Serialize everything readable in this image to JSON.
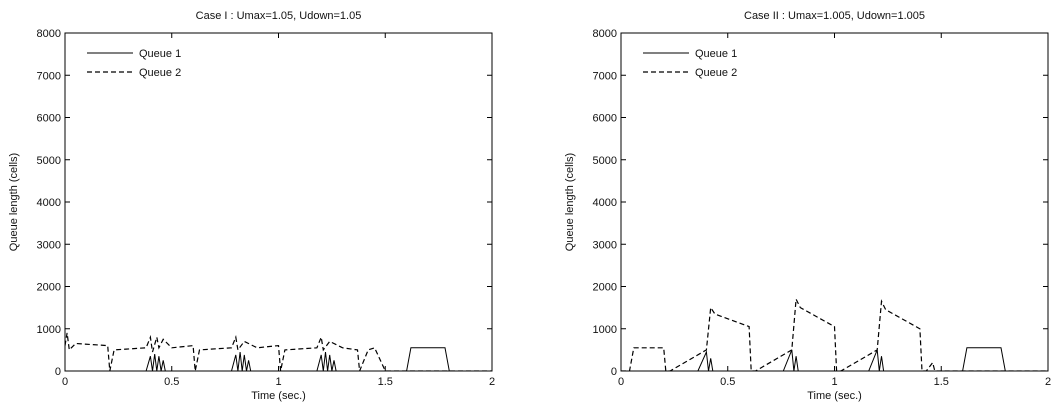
{
  "chart_data": [
    {
      "type": "line",
      "title": "Case I : Umax=1.05, Udown=1.05",
      "xlabel": "Time (sec.)",
      "ylabel": "Queue length (cells)",
      "xlim": [
        0,
        2
      ],
      "ylim": [
        0,
        8000
      ],
      "xticks": [
        "0",
        "0.5",
        "1",
        "1.5",
        "2"
      ],
      "yticks": [
        "0",
        "1000",
        "2000",
        "3000",
        "4000",
        "5000",
        "6000",
        "7000",
        "8000"
      ],
      "grid": false,
      "legend_position": "top-left",
      "series": [
        {
          "name": "Queue 1",
          "style": "solid",
          "x": [
            0,
            0.38,
            0.4,
            0.41,
            0.42,
            0.43,
            0.44,
            0.45,
            0.46,
            0.47,
            0.78,
            0.8,
            0.81,
            0.82,
            0.83,
            0.84,
            0.85,
            0.86,
            0.87,
            1.18,
            1.2,
            1.21,
            1.22,
            1.23,
            1.24,
            1.25,
            1.26,
            1.27,
            1.6,
            1.62,
            1.78,
            1.8,
            2
          ],
          "y": [
            0,
            0,
            350,
            0,
            400,
            0,
            350,
            0,
            250,
            0,
            0,
            380,
            0,
            450,
            0,
            380,
            0,
            250,
            0,
            0,
            380,
            0,
            450,
            0,
            380,
            0,
            250,
            0,
            0,
            550,
            550,
            0,
            0
          ]
        },
        {
          "name": "Queue 2",
          "style": "dashed",
          "x": [
            0,
            0.01,
            0.02,
            0.05,
            0.2,
            0.21,
            0.23,
            0.38,
            0.4,
            0.41,
            0.43,
            0.44,
            0.46,
            0.5,
            0.6,
            0.61,
            0.63,
            0.78,
            0.8,
            0.81,
            0.84,
            0.9,
            1.0,
            1.01,
            1.03,
            1.18,
            1.2,
            1.21,
            1.24,
            1.3,
            1.37,
            1.38,
            1.42,
            1.45,
            1.5,
            2
          ],
          "y": [
            600,
            900,
            500,
            650,
            600,
            0,
            500,
            550,
            800,
            450,
            800,
            550,
            750,
            550,
            600,
            0,
            500,
            550,
            800,
            500,
            700,
            550,
            600,
            0,
            500,
            550,
            800,
            500,
            700,
            550,
            500,
            0,
            500,
            550,
            0,
            0
          ]
        }
      ]
    },
    {
      "type": "line",
      "title": "Case II : Umax=1.005, Udown=1.005",
      "xlabel": "Time (sec.)",
      "ylabel": "Queue length (cells)",
      "xlim": [
        0,
        2
      ],
      "ylim": [
        0,
        8000
      ],
      "xticks": [
        "0",
        "0.5",
        "1",
        "1.5",
        "2"
      ],
      "yticks": [
        "0",
        "1000",
        "2000",
        "3000",
        "4000",
        "5000",
        "6000",
        "7000",
        "8000"
      ],
      "grid": false,
      "legend_position": "top-left",
      "series": [
        {
          "name": "Queue 1",
          "style": "solid",
          "x": [
            0,
            0.36,
            0.4,
            0.41,
            0.42,
            0.43,
            0.76,
            0.8,
            0.81,
            0.82,
            0.83,
            1.16,
            1.2,
            1.21,
            1.22,
            1.23,
            1.6,
            1.62,
            1.78,
            1.8,
            2
          ],
          "y": [
            0,
            0,
            450,
            0,
            300,
            0,
            0,
            500,
            0,
            350,
            0,
            0,
            500,
            0,
            350,
            0,
            0,
            550,
            550,
            0,
            0
          ]
        },
        {
          "name": "Queue 2",
          "style": "dashed",
          "x": [
            0,
            0.04,
            0.06,
            0.2,
            0.21,
            0.23,
            0.4,
            0.42,
            0.44,
            0.6,
            0.61,
            0.63,
            0.8,
            0.82,
            0.84,
            1.0,
            1.01,
            1.03,
            1.2,
            1.22,
            1.24,
            1.4,
            1.41,
            1.43,
            1.46,
            1.47,
            2
          ],
          "y": [
            0,
            0,
            550,
            550,
            0,
            0,
            500,
            1500,
            1350,
            1050,
            0,
            0,
            500,
            1700,
            1500,
            1050,
            0,
            0,
            500,
            1650,
            1450,
            1000,
            0,
            0,
            200,
            0,
            0
          ]
        }
      ]
    }
  ]
}
